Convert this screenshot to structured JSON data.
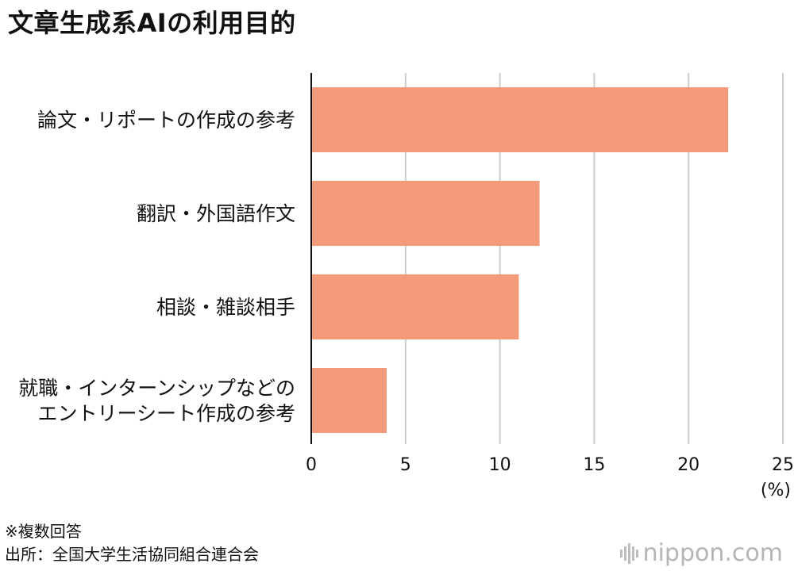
{
  "title": "文章生成系AIの利用目的",
  "notes": {
    "multiple": "※複数回答",
    "source": "出所：全国大学生活協同組合連合会"
  },
  "logo": {
    "text": "nippon.com"
  },
  "chart_data": {
    "type": "bar",
    "orientation": "horizontal",
    "categories": [
      [
        "論文・リポートの作成の参考"
      ],
      [
        "翻訳・外国語作文"
      ],
      [
        "相談・雑談相手"
      ],
      [
        "就職・インターンシップなどの",
        "エントリーシート作成の参考"
      ]
    ],
    "values": [
      22.1,
      12.1,
      11.0,
      4.0
    ],
    "xlim": [
      0,
      25
    ],
    "xticks": [
      0,
      5,
      10,
      15,
      20,
      25
    ],
    "unit": "(%)",
    "bar_color": "#f29a7a",
    "grid": true,
    "grid_color": "#cccccc"
  }
}
